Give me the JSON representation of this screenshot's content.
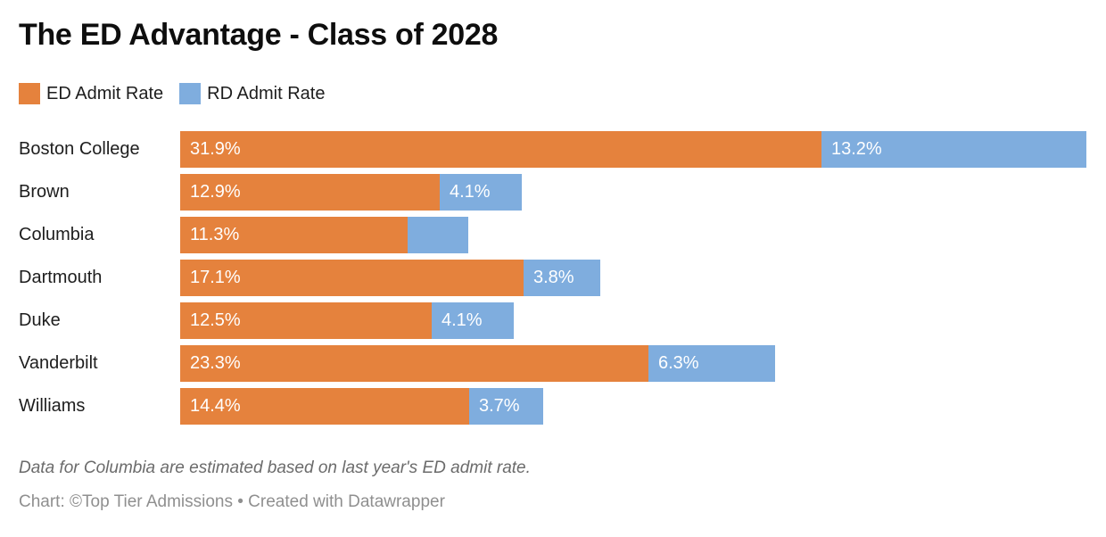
{
  "header": {
    "title": "The ED Advantage - Class of 2028"
  },
  "legend": {
    "items": [
      {
        "label": "ED Admit Rate",
        "color": "#E5823D"
      },
      {
        "label": "RD Admit Rate",
        "color": "#7FADDE"
      }
    ]
  },
  "chart_data": {
    "type": "bar",
    "orientation": "horizontal",
    "stacked": true,
    "title": "The ED Advantage - Class of 2028",
    "categories": [
      "Boston College",
      "Brown",
      "Columbia",
      "Dartmouth",
      "Duke",
      "Vanderbilt",
      "Williams"
    ],
    "series": [
      {
        "name": "ED Admit Rate",
        "color": "#E5823D",
        "values": [
          31.9,
          12.9,
          11.3,
          17.1,
          12.5,
          23.3,
          14.4
        ],
        "labels": [
          "31.9%",
          "12.9%",
          "11.3%",
          "17.1%",
          "12.5%",
          "23.3%",
          "14.4%"
        ]
      },
      {
        "name": "RD Admit Rate",
        "color": "#7FADDE",
        "values": [
          13.2,
          4.1,
          3.0,
          3.8,
          4.1,
          6.3,
          3.7
        ],
        "labels": [
          "13.2%",
          "4.1%",
          "",
          "3.8%",
          "4.1%",
          "6.3%",
          "3.7%"
        ]
      }
    ],
    "xlim": [
      0,
      45.1
    ],
    "grid": false,
    "legend_position": "top",
    "value_labels": "inside-start",
    "note": "Columbia RD segment drawn without a visible label; its value (~3.0) is estimated from bar length"
  },
  "footer": {
    "footnote": "Data for Columbia are estimated based on last year's ED admit rate.",
    "byline": "Chart: ©Top Tier Admissions • Created with Datawrapper"
  }
}
